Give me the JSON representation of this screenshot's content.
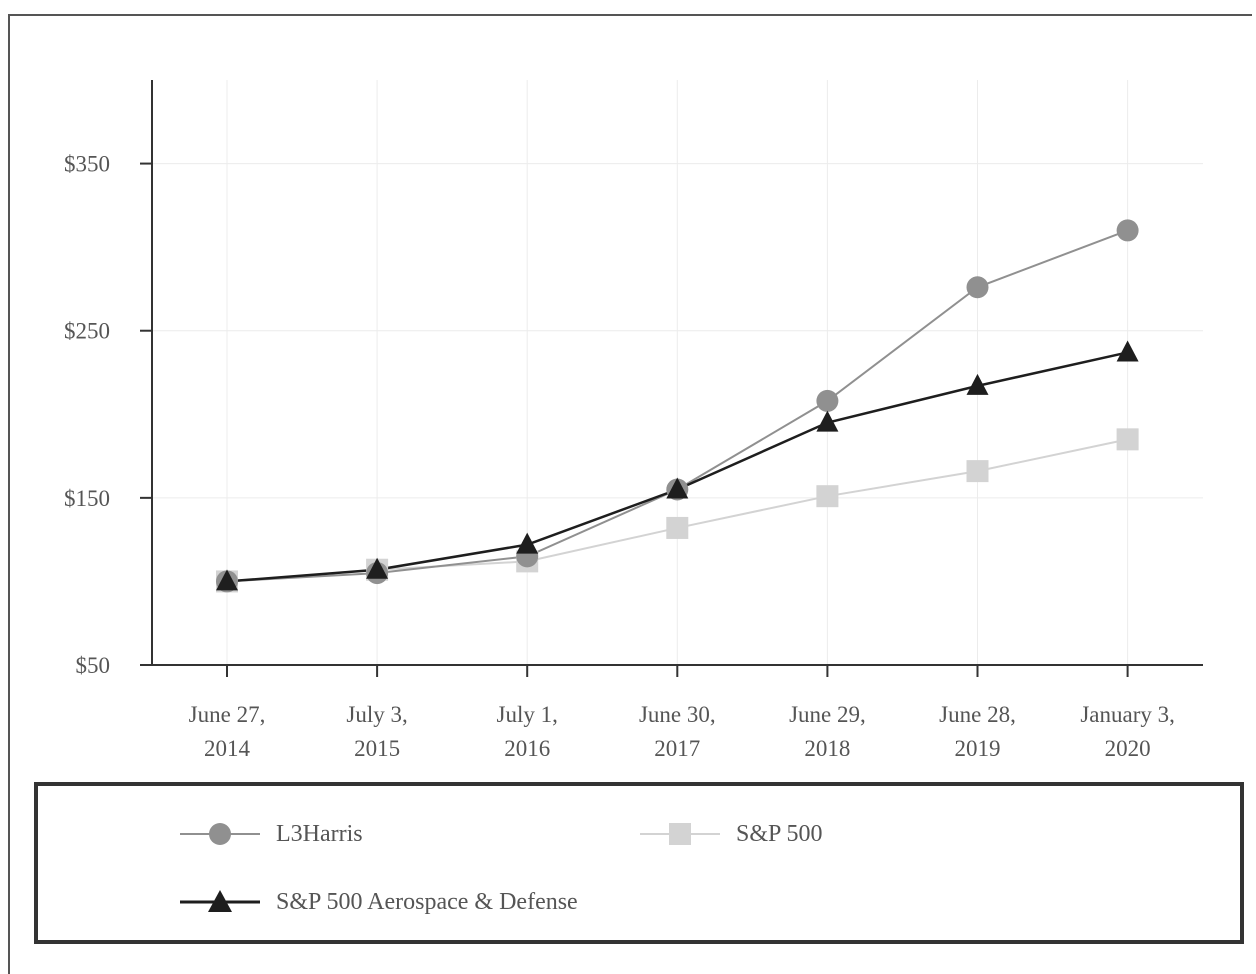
{
  "chart_data": {
    "type": "line",
    "categories": [
      [
        "June 27,",
        "2014"
      ],
      [
        "July 3,",
        "2015"
      ],
      [
        "July 1,",
        "2016"
      ],
      [
        "June 30,",
        "2017"
      ],
      [
        "June 29,",
        "2018"
      ],
      [
        "June 28,",
        "2019"
      ],
      [
        "January 3,",
        "2020"
      ]
    ],
    "y_ticks": [
      "$50",
      "$150",
      "$250",
      "$350"
    ],
    "y_tick_values": [
      50,
      150,
      250,
      350
    ],
    "ylim": [
      50,
      400
    ],
    "grid": true,
    "legend_placement": "bottom",
    "series": [
      {
        "name": "L3Harris",
        "marker": "circle",
        "color": "#909090",
        "values": [
          100,
          105,
          115,
          155,
          208,
          276,
          310
        ]
      },
      {
        "name": "S&P 500",
        "marker": "square",
        "color": "#d3d3d3",
        "values": [
          100,
          107,
          112,
          132,
          151,
          166,
          185
        ]
      },
      {
        "name": "S&P 500 Aerospace & Defense",
        "marker": "triangle",
        "color": "#1e1e1e",
        "values": [
          100,
          107,
          122,
          155,
          195,
          217,
          237
        ]
      }
    ]
  }
}
